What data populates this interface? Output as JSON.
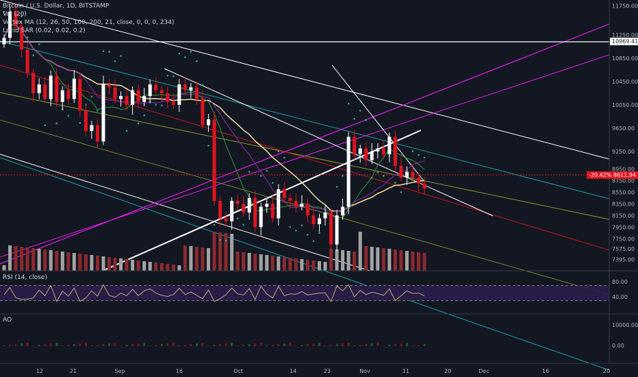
{
  "legend": {
    "title": "Bitcoin / U.S. Dollar, 1D, BITSTAMP",
    "volume": "Vol (20)",
    "vertex_ma": "Vertex MA (12, 26, 50, 100, 200, 21, close, 0, 0, 0, 234)",
    "lucid_sar": "Lucid SAR (0.02, 0.02, 0.2)"
  },
  "panes": {
    "rsi_label": "RSI (14, close)",
    "ao_label": "AO"
  },
  "price_tags": {
    "hline_price": "10969.41",
    "change": "-20.42%",
    "last": "8611.94"
  },
  "colors": {
    "background": "#131722",
    "up": "#ffffff",
    "down": "#e0141e",
    "magenta": "#e11ee6",
    "teal": "#1aa1a0",
    "olive": "#8c9a2a",
    "red_line": "#c4151c",
    "yellow_ma": "#f4e3a1",
    "green_ma": "#2e9b33",
    "purple_ma": "#8e2aa8",
    "sar": "#2ca68f",
    "rsi": "#c4a87a",
    "rsi_band": "#2a1e4a"
  },
  "chart_data": {
    "type": "candlestick",
    "symbol": "Bitcoin / U.S. Dollar",
    "interval": "1D",
    "y_ticks": [
      11750,
      11250,
      10850,
      10450,
      10050,
      9650,
      9250,
      8950,
      8750,
      8550,
      8350,
      8150,
      7950,
      7750,
      7575,
      7395
    ],
    "x_labels": [
      "12",
      "21",
      "Sep",
      "16",
      "Oct",
      "14",
      "23",
      "Nov",
      "11",
      "20",
      "Dec",
      "16",
      "20"
    ],
    "ylim": [
      7200,
      11850
    ],
    "series_close": [
      11200,
      11650,
      11400,
      11000,
      10600,
      10250,
      10400,
      10150,
      10550,
      10100,
      10300,
      10150,
      10500,
      9950,
      9600,
      9700,
      9420,
      10400,
      10350,
      10150,
      10200,
      10050,
      10300,
      10100,
      10200,
      10400,
      10300,
      10250,
      10100,
      10050,
      10400,
      10300,
      10350,
      10150,
      9700,
      9800,
      8400,
      8100,
      8050,
      8400,
      8350,
      8200,
      8450,
      7950,
      8300,
      8350,
      8100,
      8600,
      8450,
      8400,
      8300,
      8350,
      8150,
      8000,
      8100,
      8200,
      7650,
      8150,
      8300,
      9500,
      9200,
      9300,
      9100,
      9250,
      9300,
      9200,
      9500,
      9000,
      8800,
      8900,
      8800,
      8700,
      8612
    ],
    "rsi": {
      "levels": [
        70,
        30
      ],
      "ticks": [
        "80.00",
        "40.00"
      ],
      "value_last": 44
    },
    "ao": {
      "ticks": [
        "10000.00",
        "0.00"
      ]
    }
  }
}
